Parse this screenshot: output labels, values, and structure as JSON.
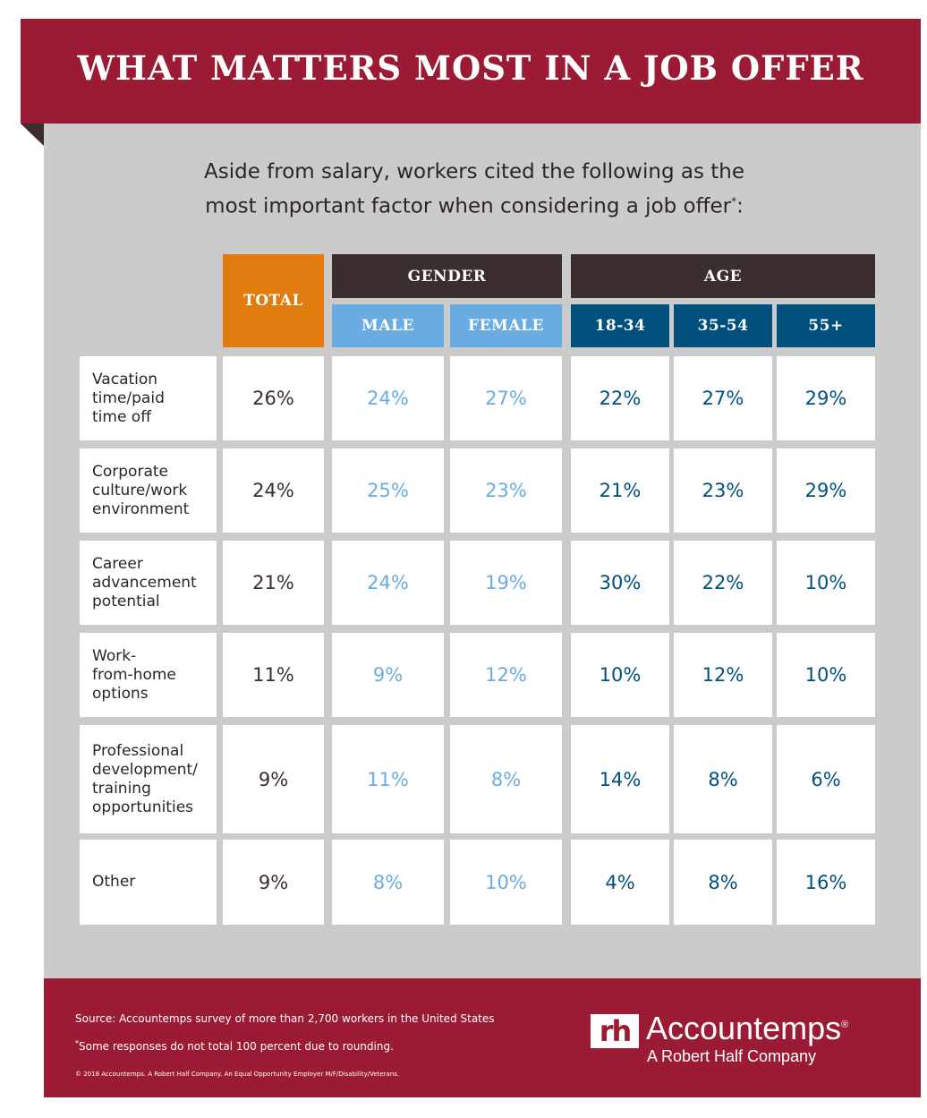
{
  "title": "WHAT MATTERS MOST IN A JOB OFFER",
  "subtitle_line1": "Aside from salary, workers cited the following as the",
  "subtitle_line2": "most important factor when considering a job offer",
  "subtitle_mark": "*",
  "subtitle_colon": ":",
  "colors": {
    "brand_red": "#9b1b34",
    "total_orange": "#e07b0e",
    "gender_blue": "#6aace2",
    "age_blue": "#00507e",
    "dark_header": "#3a2f2d",
    "panel_gray": "#cccbcc"
  },
  "chart_data": {
    "type": "table",
    "group_headers": {
      "total": "TOTAL",
      "gender": "GENDER",
      "age": "AGE"
    },
    "columns": [
      "TOTAL",
      "MALE",
      "FEMALE",
      "18-34",
      "35-54",
      "55+"
    ],
    "rows": [
      {
        "label": "Vacation\ntime/paid\ntime off",
        "values": [
          "26%",
          "24%",
          "27%",
          "22%",
          "27%",
          "29%"
        ]
      },
      {
        "label": "Corporate\nculture/work\nenvironment",
        "values": [
          "24%",
          "25%",
          "23%",
          "21%",
          "23%",
          "29%"
        ]
      },
      {
        "label": "Career\nadvancement\npotential",
        "values": [
          "21%",
          "24%",
          "19%",
          "30%",
          "22%",
          "10%"
        ]
      },
      {
        "label": "Work-\nfrom-home\noptions",
        "values": [
          "11%",
          "9%",
          "12%",
          "10%",
          "12%",
          "10%"
        ]
      },
      {
        "label": "Professional\ndevelopment/\ntraining\nopportunities",
        "values": [
          "9%",
          "11%",
          "8%",
          "14%",
          "8%",
          "6%"
        ]
      },
      {
        "label": "Other",
        "values": [
          "9%",
          "8%",
          "10%",
          "4%",
          "8%",
          "16%"
        ]
      }
    ]
  },
  "footer": {
    "source": "Source: Accountemps survey of more than 2,700 workers in the United States",
    "note_mark": "*",
    "note": "Some responses do not total 100 percent due to rounding.",
    "copyright": "© 2018 Accountemps. A Robert Half Company. An Equal Opportunity Employer M/F/Disability/Veterans.",
    "logo_mark": "rh",
    "logo_name": "Accountemps",
    "logo_reg": "®",
    "logo_sub": "A Robert Half Company"
  }
}
